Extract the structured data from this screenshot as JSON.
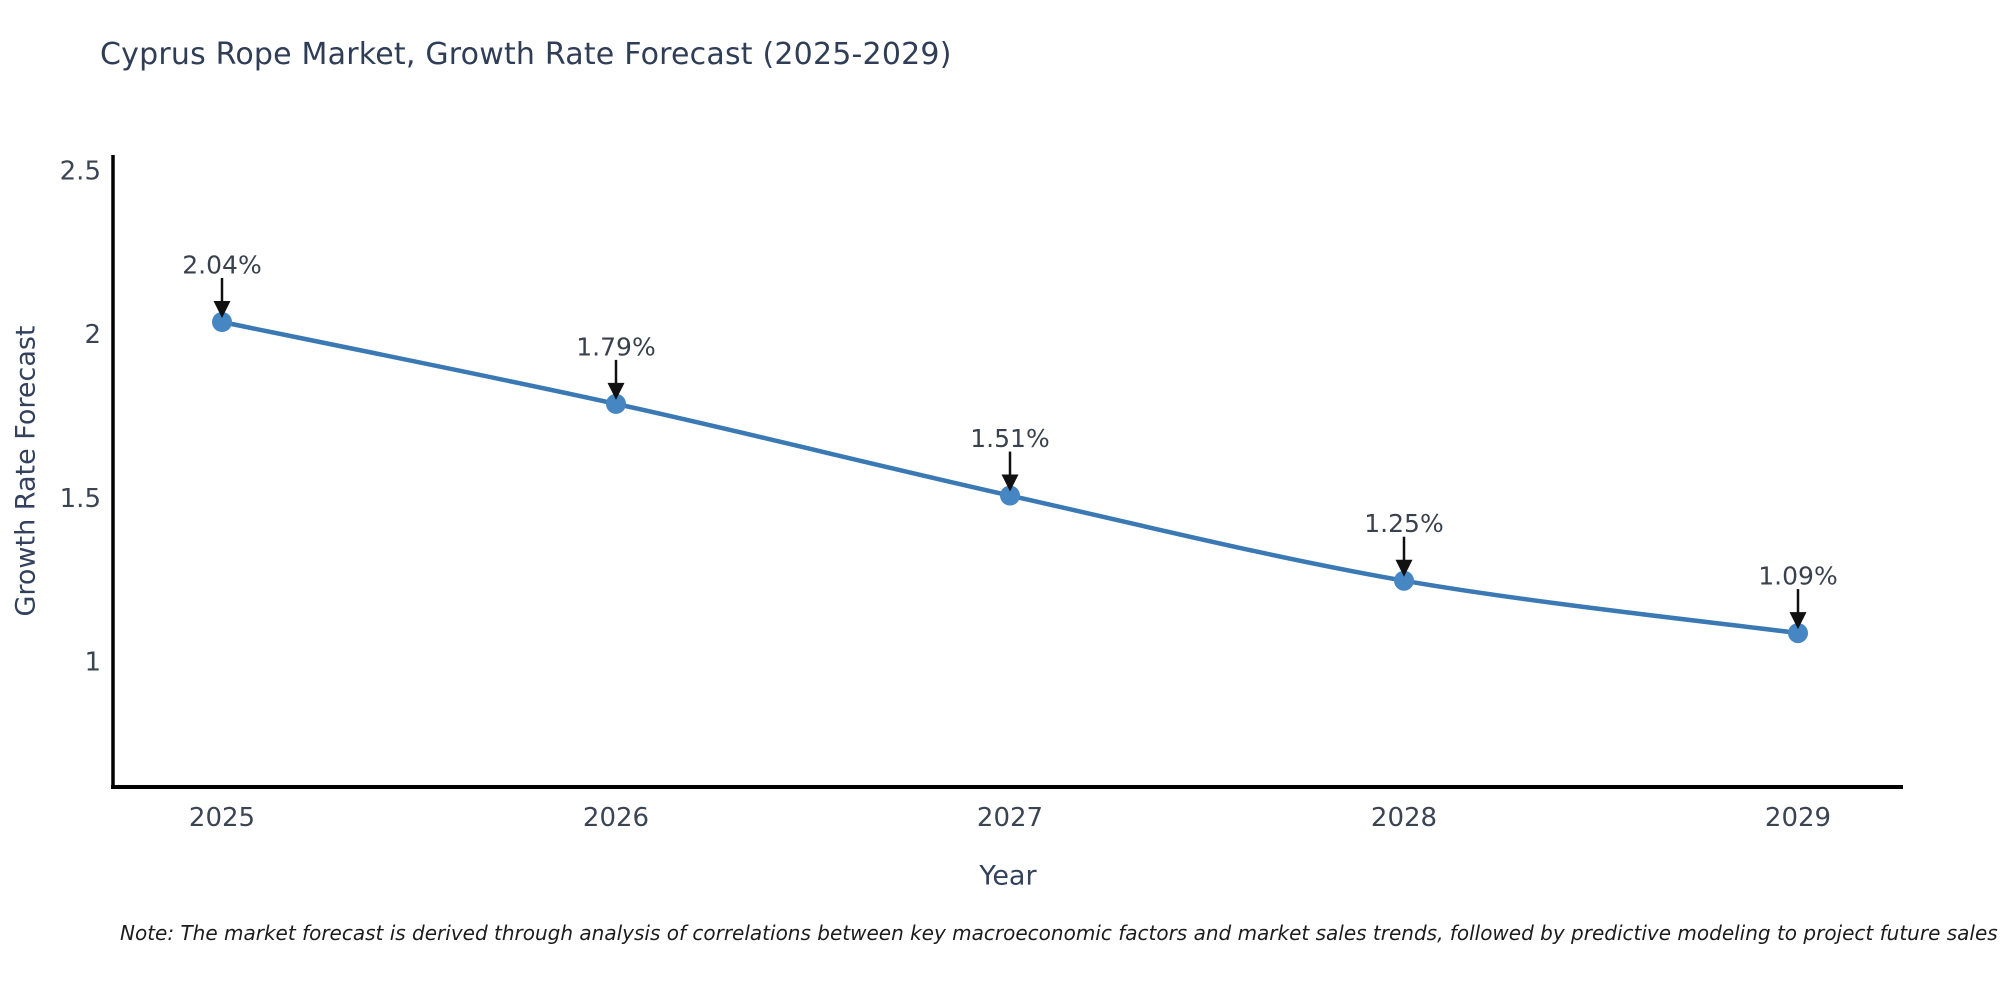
{
  "title": "Cyprus Rope Market, Growth Rate Forecast (2025-2029)",
  "note": "Note: The market forecast is derived through analysis of correlations between key macroeconomic factors and market sales trends, followed by predictive modeling to project future sales",
  "chart_data": {
    "type": "line",
    "title": "Cyprus Rope Market, Growth Rate Forecast (2025-2029)",
    "xlabel": "Year",
    "ylabel": "Growth Rate Forecast",
    "categories": [
      "2025",
      "2026",
      "2027",
      "2028",
      "2029"
    ],
    "x": [
      2025,
      2026,
      2027,
      2028,
      2029
    ],
    "series": [
      {
        "name": "Growth Rate Forecast",
        "values": [
          2.04,
          1.79,
          1.51,
          1.25,
          1.09
        ]
      }
    ],
    "point_labels": [
      "2.04%",
      "1.79%",
      "1.51%",
      "1.25%",
      "1.09%"
    ],
    "yticks": [
      1,
      1.5,
      2,
      2.5
    ],
    "ytick_labels": [
      "1",
      "1.5",
      "2",
      "2.5"
    ],
    "ylim": [
      0.62,
      2.55
    ],
    "grid": false,
    "legend_position": "none",
    "annotation_style": "value labels with downward black arrows onto markers",
    "colors": {
      "line": "#3a79b3",
      "marker": "#4586c3",
      "arrow": "#111111",
      "axis": "#000000",
      "title_text": "#2f3e56",
      "axis_label_text": "#33415c",
      "tick_text": "#3b4452",
      "annotation_text": "#39414e",
      "background": "#ffffff"
    }
  }
}
